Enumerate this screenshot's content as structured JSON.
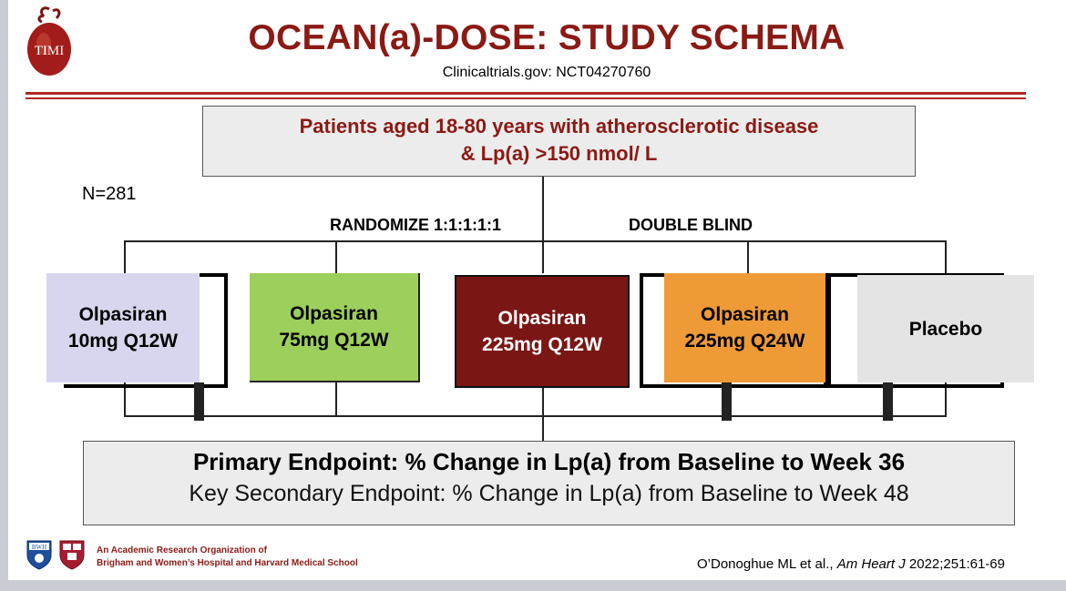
{
  "header": {
    "title": "OCEAN(a)-DOSE: STUDY SCHEMA",
    "subtitle": "Clinicaltrials.gov: NCT04270760",
    "logo_text": "TIMI"
  },
  "eligibility": {
    "line1": "Patients aged  18-80 years with atherosclerotic disease",
    "line2": "& Lp(a) >150 nmol/ L"
  },
  "sample_size": "N=281",
  "randomize_label": "RANDOMIZE 1:1:1:1:1",
  "blind_label": "DOUBLE BLIND",
  "arms": [
    {
      "line1": "Olpasiran",
      "line2": "10mg Q12W",
      "color": "#d7d6ee",
      "text_color": "#000000"
    },
    {
      "line1": "Olpasiran",
      "line2": "75mg Q12W",
      "color": "#9ccf5b",
      "text_color": "#000000"
    },
    {
      "line1": "Olpasiran",
      "line2": "225mg Q12W",
      "color": "#7a1614",
      "text_color": "#ffffff"
    },
    {
      "line1": "Olpasiran",
      "line2": "225mg Q24W",
      "color": "#ee9a37",
      "text_color": "#000000"
    },
    {
      "line1": "Placebo",
      "line2": "",
      "color": "#e4e4e4",
      "text_color": "#000000"
    }
  ],
  "endpoints": {
    "primary": "Primary Endpoint: % Change in Lp(a) from Baseline to Week 36",
    "secondary": "Key Secondary Endpoint: % Change in Lp(a) from Baseline to Week 48"
  },
  "footer": {
    "org_line1": "An Academic Research Organization of",
    "org_line2": "Brigham and Women’s Hospital and Harvard Medical School",
    "bwh_logo_text": "BWH",
    "citation_authors": "O’Donoghue ML et al., ",
    "citation_journal": "Am Heart J",
    "citation_ref": " 2022;251:61-69"
  },
  "colors": {
    "title": "#8b1a14",
    "eligibility_text": "#8b1a14",
    "rule": "#b0262a",
    "org_text": "#8b1a14"
  }
}
